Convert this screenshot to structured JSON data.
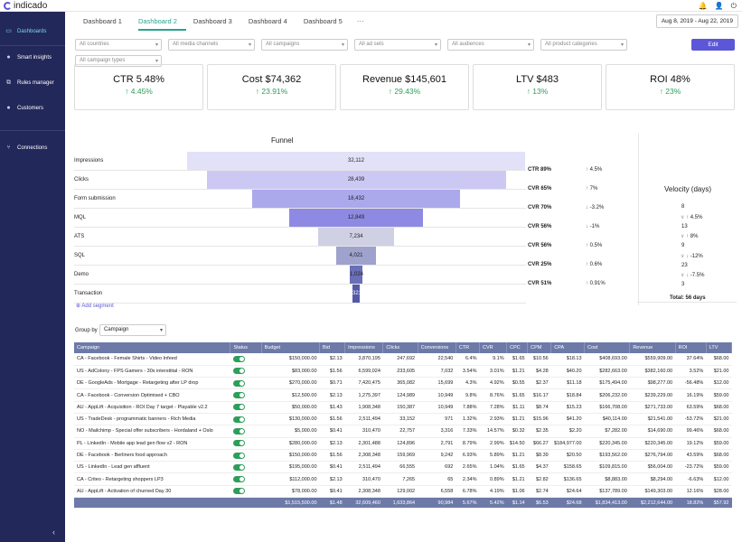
{
  "app": {
    "logo": "indicado"
  },
  "sidebar": {
    "items": [
      {
        "label": "Dashboards",
        "icon": "dashboard-icon"
      },
      {
        "label": "Smart insights",
        "icon": "lightbulb-icon"
      },
      {
        "label": "Rules manager",
        "icon": "rules-icon"
      },
      {
        "label": "Customers",
        "icon": "user-icon"
      },
      {
        "label": "Connections",
        "icon": "connections-icon"
      }
    ]
  },
  "tabs": [
    "Dashboard 1",
    "Dashboard 2",
    "Dashboard 3",
    "Dashboard 4",
    "Dashboard 5"
  ],
  "tabs_more": "···",
  "date_range": "Aug 8, 2019 - Aug 22, 2019",
  "filters": [
    "All countries",
    "All media channels",
    "All campaigns",
    "All ad sets",
    "All audiences",
    "All product categories",
    "All campaign types"
  ],
  "edit_label": "Edit",
  "kpis": [
    {
      "label": "CTR 5.48%",
      "delta": "↑ 4.45%"
    },
    {
      "label": "Cost $74,362",
      "delta": "↑ 23.91%"
    },
    {
      "label": "Revenue $145,601",
      "delta": "↑ 29.43%"
    },
    {
      "label": "LTV $483",
      "delta": "↑ 13%"
    },
    {
      "label": "ROI 48%",
      "delta": "↑ 23%"
    }
  ],
  "funnel": {
    "title": "Funnel",
    "stages": [
      {
        "label": "Impressions",
        "value": "32,112"
      },
      {
        "label": "Clicks",
        "value": "28,439"
      },
      {
        "label": "Form submission",
        "value": "18,432"
      },
      {
        "label": "MQL",
        "value": "12,849"
      },
      {
        "label": "ATS",
        "value": "7,234"
      },
      {
        "label": "SQL",
        "value": "4,021"
      },
      {
        "label": "Demo",
        "value": "1,024"
      },
      {
        "label": "Transaction",
        "value": "321"
      }
    ],
    "rates": [
      {
        "label": "CTR 89%",
        "delta": "4.5%",
        "dir": "up"
      },
      {
        "label": "CVR 65%",
        "delta": "7%",
        "dir": "up"
      },
      {
        "label": "CVR 70%",
        "delta": "-3.2%",
        "dir": "down"
      },
      {
        "label": "CVR 56%",
        "delta": "-1%",
        "dir": "flat"
      },
      {
        "label": "CVR 56%",
        "delta": "0.5%",
        "dir": "up"
      },
      {
        "label": "CVR 25%",
        "delta": "0.6%",
        "dir": "up"
      },
      {
        "label": "CVR 51%",
        "delta": "0.91%",
        "dir": "up"
      }
    ],
    "add_segment": "Add segment"
  },
  "velocity": {
    "title": "Velocity (days)",
    "values": [
      "8",
      "13",
      "9",
      "23",
      "3"
    ],
    "deltas": [
      {
        "text": "4.5%",
        "dir": "up"
      },
      {
        "text": "8%",
        "dir": "up"
      },
      {
        "text": "-12%",
        "dir": "down"
      },
      {
        "text": "-7.5%",
        "dir": "down"
      }
    ],
    "total": "Total: 56 days"
  },
  "groupby": {
    "label": "Group by",
    "value": "Campaign"
  },
  "table": {
    "headers": [
      "Campaign",
      "Status",
      "Budget",
      "Bid",
      "Impressions",
      "Clicks",
      "Conversions",
      "CTR",
      "CVR",
      "CPC",
      "CPM",
      "CPA",
      "Cost",
      "Revenue",
      "ROI",
      "LTV"
    ],
    "rows": [
      [
        "CA - Facebook - Female Shirts - Video Infeed",
        "",
        "$150,000.00",
        "$2.13",
        "3,870,195",
        "247,692",
        "22,540",
        "6.4%",
        "9.1%",
        "$1.65",
        "$10.56",
        "$18.13",
        "$408,693.00",
        "$559,909.00",
        "37.64%",
        "$68.00"
      ],
      [
        "US - AdColony - FPS Gamers - 30s interstitial - RON",
        "",
        "$83,000.00",
        "$1.56",
        "6,599,024",
        "233,605",
        "7,032",
        "3.54%",
        "3.01%",
        "$1.21",
        "$4.28",
        "$40.20",
        "$282,663.00",
        "$382,160.00",
        "3.52%",
        "$21.00"
      ],
      [
        "DE - GoogleAds - Mortgage - Retargeting after LP drop",
        "",
        "$270,000.00",
        "$0.71",
        "7,420,475",
        "365,082",
        "15,699",
        "4.3%",
        "4.92%",
        "$0.55",
        "$2.37",
        "$11.18",
        "$175,494.00",
        "$98,277.00",
        "-56.48%",
        "$12.00"
      ],
      [
        "CA - Facebook - Conversion Optimised + CBO",
        "",
        "$12,500.00",
        "$2.13",
        "1,275,397",
        "124,989",
        "10,949",
        "9.8%",
        "8.76%",
        "$1.65",
        "$16.17",
        "$18.84",
        "$206,232.00",
        "$239,229.00",
        "16.19%",
        "$59.00"
      ],
      [
        "AU - AppLift - Acquisition - ROI Day 7 target - Playable v2.2",
        "",
        "$50,000.00",
        "$1.43",
        "1,908,348",
        "150,387",
        "10,949",
        "7.88%",
        "7.28%",
        "$1.11",
        "$8.74",
        "$15.23",
        "$166,708.00",
        "$271,733.00",
        "63.59%",
        "$68.00"
      ],
      [
        "US - TradeDesk - programmatic banners - Rich Media",
        "",
        "$130,000.00",
        "$1.56",
        "2,511,494",
        "33,152",
        "971",
        "1.32%",
        "2.93%",
        "$1.21",
        "$15.96",
        "$41.20",
        "$40,114.00",
        "$21,541.00",
        "-53.72%",
        "$21.00"
      ],
      [
        "NO - Mailchimp - Special offer subscribers - Hordaland + Oslo",
        "",
        "$5,000.00",
        "$0.41",
        "310,470",
        "22,757",
        "3,316",
        "7.33%",
        "14.57%",
        "$0.32",
        "$2.35",
        "$2.20",
        "$7,282.00",
        "$14,690.00",
        "99.46%",
        "$68.00"
      ],
      [
        "PL - LinkedIn - Mobile app lead gen flow v2 - RON",
        "",
        "$280,000.00",
        "$2.13",
        "2,301,488",
        "124,896",
        "2,791",
        "8.79%",
        "2.99%",
        "$14.50",
        "$66.27",
        "$184,977.00",
        "$220,345.00",
        "$220,345.00",
        "19.12%",
        "$59.00"
      ],
      [
        "DE - Facebook - Berliners food approach",
        "",
        "$150,000.00",
        "$1.56",
        "2,308,348",
        "159,969",
        "9,242",
        "6.93%",
        "5.89%",
        "$1.21",
        "$8.39",
        "$20.50",
        "$193,562.00",
        "$276,794.00",
        "43.59%",
        "$68.00"
      ],
      [
        "US - LinkedIn - Lead gen affluent",
        "",
        "$195,000.00",
        "$0.41",
        "2,511,494",
        "66,555",
        "692",
        "2.65%",
        "1.04%",
        "$1.65",
        "$4.37",
        "$158.65",
        "$109,815.00",
        "$56,004.00",
        "-23.72%",
        "$59.00"
      ],
      [
        "CA - Criteo - Retargeting shoppers LP3",
        "",
        "$112,000.00",
        "$2.13",
        "310,470",
        "7,265",
        "65",
        "2.34%",
        "0.89%",
        "$1.21",
        "$2.82",
        "$136.65",
        "$8,883.00",
        "$8,294.00",
        "-6.63%",
        "$12.00"
      ],
      [
        "AU - AppLift - Activation of churned Day 30",
        "",
        "$78,000.00",
        "$0.41",
        "2,308,348",
        "129,002",
        "6,558",
        "6.78%",
        "4.19%",
        "$1.06",
        "$2.74",
        "$24.64",
        "$137,789.00",
        "$149,303.00",
        "12.16%",
        "$28.00"
      ]
    ],
    "total": [
      "",
      "",
      "$1,515,500.00",
      "$1.48",
      "32,609,460",
      "1,633,864",
      "90,984",
      "5.67%",
      "5.42%",
      "$1.14",
      "$6.53",
      "$24.68",
      "$1,834,413.00",
      "$2,212,644.00",
      "18.82%",
      "$57.92"
    ]
  }
}
